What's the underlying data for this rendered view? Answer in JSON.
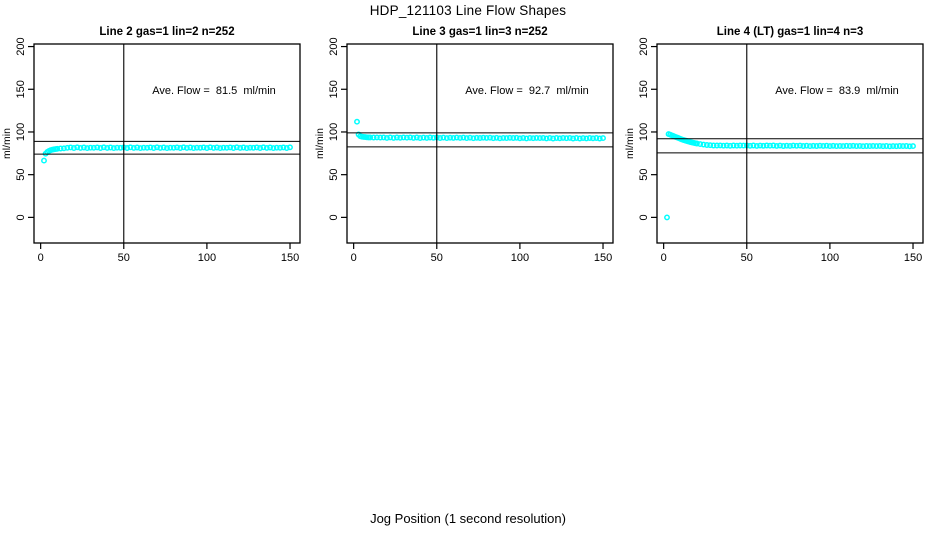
{
  "page": {
    "title": "HDP_121103  Line Flow Shapes",
    "xlabel": "Jog Position (1 second resolution)"
  },
  "colors": {
    "point": "#00FFFF",
    "axis": "#000000",
    "background": "#FFFFFF"
  },
  "chart_data": [
    {
      "type": "scatter",
      "title": "Line 2 gas=1 lin=2 n=252",
      "annotation": "Ave. Flow =  81.5  ml/min",
      "ave_flow_ml_min": 81.5,
      "n": 252,
      "ylabel": "ml/min",
      "xticks": [
        0,
        50,
        100,
        150
      ],
      "yticks": [
        0,
        50,
        100,
        150,
        200
      ],
      "xlim": [
        -4,
        156
      ],
      "ylim": [
        -30,
        203
      ],
      "hlines": [
        89,
        74
      ],
      "vline": 50,
      "points": [
        [
          2,
          66.5
        ],
        [
          3,
          74.5
        ],
        [
          4,
          76.5
        ],
        [
          5,
          77.8
        ],
        [
          6,
          78.6
        ],
        [
          7,
          79.2
        ],
        [
          8,
          79.7
        ],
        [
          9,
          80.0
        ],
        [
          10,
          80.3
        ],
        [
          12,
          80.7
        ],
        [
          14,
          80.9
        ],
        [
          16,
          81.5
        ],
        [
          18,
          81.9
        ],
        [
          20,
          81.2
        ],
        [
          22,
          82.0
        ],
        [
          24,
          81.4
        ],
        [
          26,
          81.8
        ],
        [
          28,
          81.1
        ],
        [
          30,
          81.6
        ],
        [
          32,
          81.5
        ],
        [
          34,
          81.9
        ],
        [
          36,
          81.2
        ],
        [
          38,
          82.0
        ],
        [
          40,
          81.4
        ],
        [
          42,
          81.8
        ],
        [
          44,
          81.1
        ],
        [
          46,
          81.6
        ],
        [
          48,
          81.5
        ],
        [
          50,
          81.9
        ],
        [
          52,
          81.2
        ],
        [
          54,
          82.0
        ],
        [
          56,
          81.4
        ],
        [
          58,
          81.8
        ],
        [
          60,
          81.1
        ],
        [
          62,
          81.6
        ],
        [
          64,
          81.5
        ],
        [
          66,
          81.9
        ],
        [
          68,
          81.2
        ],
        [
          70,
          82.0
        ],
        [
          72,
          81.4
        ],
        [
          74,
          81.8
        ],
        [
          76,
          81.1
        ],
        [
          78,
          81.6
        ],
        [
          80,
          81.5
        ],
        [
          82,
          81.9
        ],
        [
          84,
          81.2
        ],
        [
          86,
          82.0
        ],
        [
          88,
          81.4
        ],
        [
          90,
          81.8
        ],
        [
          92,
          81.1
        ],
        [
          94,
          81.6
        ],
        [
          96,
          81.5
        ],
        [
          98,
          81.9
        ],
        [
          100,
          81.2
        ],
        [
          102,
          82.0
        ],
        [
          104,
          81.4
        ],
        [
          106,
          81.8
        ],
        [
          108,
          81.1
        ],
        [
          110,
          81.6
        ],
        [
          112,
          81.5
        ],
        [
          114,
          81.9
        ],
        [
          116,
          81.2
        ],
        [
          118,
          82.0
        ],
        [
          120,
          81.4
        ],
        [
          122,
          81.8
        ],
        [
          124,
          81.1
        ],
        [
          126,
          81.6
        ],
        [
          128,
          81.5
        ],
        [
          130,
          81.9
        ],
        [
          132,
          81.2
        ],
        [
          134,
          82.0
        ],
        [
          136,
          81.4
        ],
        [
          138,
          81.8
        ],
        [
          140,
          81.1
        ],
        [
          142,
          81.6
        ],
        [
          144,
          81.5
        ],
        [
          146,
          81.9
        ],
        [
          148,
          81.2
        ],
        [
          150,
          82.0
        ]
      ]
    },
    {
      "type": "scatter",
      "title": "Line 3 gas=1 lin=3 n=252",
      "annotation": "Ave. Flow =  92.7  ml/min",
      "ave_flow_ml_min": 92.7,
      "n": 252,
      "ylabel": "ml/min",
      "xticks": [
        0,
        50,
        100,
        150
      ],
      "yticks": [
        0,
        50,
        100,
        150,
        200
      ],
      "xlim": [
        -4,
        156
      ],
      "ylim": [
        -30,
        203
      ],
      "hlines": [
        99,
        82.5
      ],
      "vline": 50,
      "points": [
        [
          2,
          112
        ],
        [
          3,
          97
        ],
        [
          4,
          95
        ],
        [
          5,
          94.5
        ],
        [
          6,
          94.2
        ],
        [
          7,
          94
        ],
        [
          8,
          93.8
        ],
        [
          9,
          93.7
        ],
        [
          10,
          93.6
        ],
        [
          12,
          93.5
        ],
        [
          14,
          93.6
        ],
        [
          16,
          93.4
        ],
        [
          18,
          93.7
        ],
        [
          20,
          93.1
        ],
        [
          22,
          93.6
        ],
        [
          24,
          93.0
        ],
        [
          26,
          93.5
        ],
        [
          28,
          93.2
        ],
        [
          30,
          93.6
        ],
        [
          32,
          93.3
        ],
        [
          34,
          93.6
        ],
        [
          36,
          93.0
        ],
        [
          38,
          93.5
        ],
        [
          40,
          92.9
        ],
        [
          42,
          93.4
        ],
        [
          44,
          93.1
        ],
        [
          46,
          93.5
        ],
        [
          48,
          93.2
        ],
        [
          50,
          93.5
        ],
        [
          52,
          92.9
        ],
        [
          54,
          93.4
        ],
        [
          56,
          92.8
        ],
        [
          58,
          93.3
        ],
        [
          60,
          93.0
        ],
        [
          62,
          93.4
        ],
        [
          64,
          93.1
        ],
        [
          66,
          93.4
        ],
        [
          68,
          92.8
        ],
        [
          70,
          93.3
        ],
        [
          72,
          92.7
        ],
        [
          74,
          93.2
        ],
        [
          76,
          92.9
        ],
        [
          78,
          93.3
        ],
        [
          80,
          93.0
        ],
        [
          82,
          93.3
        ],
        [
          84,
          92.7
        ],
        [
          86,
          93.2
        ],
        [
          88,
          92.6
        ],
        [
          90,
          93.1
        ],
        [
          92,
          92.8
        ],
        [
          94,
          93.2
        ],
        [
          96,
          92.9
        ],
        [
          98,
          93.2
        ],
        [
          100,
          92.6
        ],
        [
          102,
          93.1
        ],
        [
          104,
          92.5
        ],
        [
          106,
          93.0
        ],
        [
          108,
          92.7
        ],
        [
          110,
          93.1
        ],
        [
          112,
          92.8
        ],
        [
          114,
          93.1
        ],
        [
          116,
          92.5
        ],
        [
          118,
          93.0
        ],
        [
          120,
          92.4
        ],
        [
          122,
          92.9
        ],
        [
          124,
          92.6
        ],
        [
          126,
          93.0
        ],
        [
          128,
          92.7
        ],
        [
          130,
          93.0
        ],
        [
          132,
          92.4
        ],
        [
          134,
          92.9
        ],
        [
          136,
          92.3
        ],
        [
          138,
          92.8
        ],
        [
          140,
          92.5
        ],
        [
          142,
          92.9
        ],
        [
          144,
          92.6
        ],
        [
          146,
          92.9
        ],
        [
          148,
          92.3
        ],
        [
          150,
          92.8
        ]
      ]
    },
    {
      "type": "scatter",
      "title": "Line 4 (LT) gas=1 lin=4 n=3",
      "annotation": "Ave. Flow =  83.9  ml/min",
      "ave_flow_ml_min": 83.9,
      "n": 3,
      "ylabel": "ml/min",
      "xticks": [
        0,
        50,
        100,
        150
      ],
      "yticks": [
        0,
        50,
        100,
        150,
        200
      ],
      "xlim": [
        -4,
        156
      ],
      "ylim": [
        -30,
        203
      ],
      "hlines": [
        92,
        75.5
      ],
      "vline": 50,
      "points": [
        [
          2,
          0
        ],
        [
          3,
          97.5
        ],
        [
          4,
          96.8
        ],
        [
          5,
          96.0
        ],
        [
          6,
          95.2
        ],
        [
          7,
          94.4
        ],
        [
          8,
          93.6
        ],
        [
          9,
          92.8
        ],
        [
          10,
          92.0
        ],
        [
          11,
          91.3
        ],
        [
          12,
          90.6
        ],
        [
          13,
          90.0
        ],
        [
          14,
          89.4
        ],
        [
          15,
          88.8
        ],
        [
          16,
          88.3
        ],
        [
          17,
          87.8
        ],
        [
          18,
          87.3
        ],
        [
          19,
          86.9
        ],
        [
          20,
          86.5
        ],
        [
          22,
          85.8
        ],
        [
          24,
          85.2
        ],
        [
          26,
          84.8
        ],
        [
          28,
          84.5
        ],
        [
          30,
          84.2
        ],
        [
          32,
          84.1
        ],
        [
          34,
          84.3
        ],
        [
          36,
          83.9
        ],
        [
          38,
          84.2
        ],
        [
          40,
          83.8
        ],
        [
          42,
          84.1
        ],
        [
          44,
          83.9
        ],
        [
          46,
          84.2
        ],
        [
          48,
          84.0
        ],
        [
          50,
          84.2
        ],
        [
          52,
          83.8
        ],
        [
          54,
          84.1
        ],
        [
          56,
          83.7
        ],
        [
          58,
          84.0
        ],
        [
          60,
          83.8
        ],
        [
          62,
          84.1
        ],
        [
          64,
          83.9
        ],
        [
          66,
          84.1
        ],
        [
          68,
          83.7
        ],
        [
          70,
          84.0
        ],
        [
          72,
          83.6
        ],
        [
          74,
          83.9
        ],
        [
          76,
          83.7
        ],
        [
          78,
          84.0
        ],
        [
          80,
          83.8
        ],
        [
          82,
          84.0
        ],
        [
          84,
          83.6
        ],
        [
          86,
          83.9
        ],
        [
          88,
          83.5
        ],
        [
          90,
          83.8
        ],
        [
          92,
          83.6
        ],
        [
          94,
          83.9
        ],
        [
          96,
          83.7
        ],
        [
          98,
          83.9
        ],
        [
          100,
          83.5
        ],
        [
          102,
          83.8
        ],
        [
          104,
          83.4
        ],
        [
          106,
          83.7
        ],
        [
          108,
          83.5
        ],
        [
          110,
          83.8
        ],
        [
          112,
          83.6
        ],
        [
          114,
          83.8
        ],
        [
          116,
          83.4
        ],
        [
          118,
          83.7
        ],
        [
          120,
          83.3
        ],
        [
          122,
          83.6
        ],
        [
          124,
          83.4
        ],
        [
          126,
          83.7
        ],
        [
          128,
          83.5
        ],
        [
          130,
          83.7
        ],
        [
          132,
          83.3
        ],
        [
          134,
          83.6
        ],
        [
          136,
          83.2
        ],
        [
          138,
          83.5
        ],
        [
          140,
          83.3
        ],
        [
          142,
          83.6
        ],
        [
          144,
          83.4
        ],
        [
          146,
          83.6
        ],
        [
          148,
          83.2
        ],
        [
          150,
          83.5
        ]
      ]
    }
  ]
}
